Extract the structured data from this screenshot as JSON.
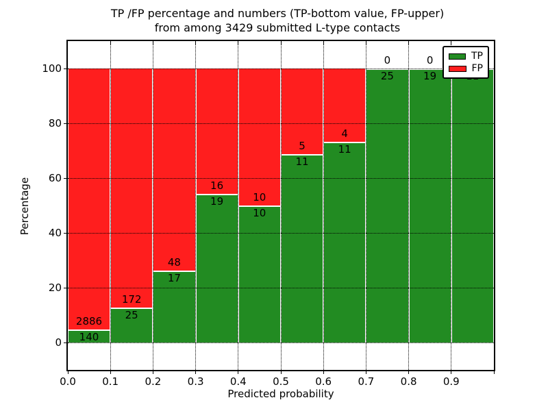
{
  "title": {
    "line1": "TP /FP percentage and numbers (TP-bottom value, FP-upper)",
    "line2": "from among 3429 submitted L-type contacts"
  },
  "axes": {
    "xlabel": "Predicted probability",
    "ylabel": "Percentage",
    "xtick_labels": [
      "0.0",
      "0.1",
      "0.2",
      "0.3",
      "0.4",
      "0.5",
      "0.6",
      "0.7",
      "0.8",
      "0.9"
    ],
    "ytick_labels": [
      "0",
      "20",
      "40",
      "60",
      "80",
      "100"
    ],
    "ytick_values": [
      0,
      20,
      40,
      60,
      80,
      100
    ]
  },
  "legend": {
    "items": [
      {
        "label": "TP",
        "color": "#228B22"
      },
      {
        "label": "FP",
        "color": "#FF1E1E"
      }
    ]
  },
  "colors": {
    "tp": "#228B22",
    "fp": "#FF1E1E",
    "grid": "#000000",
    "background": "#ffffff"
  },
  "chart_data": {
    "type": "bar",
    "stacked": true,
    "normalized_to_percent": true,
    "title": "TP /FP percentage and numbers (TP-bottom value, FP-upper) from among 3429 submitted L-type contacts",
    "xlabel": "Predicted probability",
    "ylabel": "Percentage",
    "categories": [
      "0.0-0.1",
      "0.1-0.2",
      "0.2-0.3",
      "0.3-0.4",
      "0.4-0.5",
      "0.5-0.6",
      "0.6-0.7",
      "0.7-0.8",
      "0.8-0.9",
      "0.9-1.0"
    ],
    "series": [
      {
        "name": "TP",
        "color": "#228B22",
        "values": [
          140,
          25,
          17,
          19,
          10,
          11,
          11,
          25,
          19,
          11
        ]
      },
      {
        "name": "FP",
        "color": "#FF1E1E",
        "values": [
          2886,
          172,
          48,
          16,
          10,
          5,
          4,
          0,
          0,
          0
        ]
      }
    ],
    "tp_percent": [
      4.63,
      12.69,
      26.15,
      54.29,
      50.0,
      68.75,
      73.33,
      100.0,
      100.0,
      100.0
    ],
    "total_contacts": 3429,
    "xlim": [
      0.0,
      1.0
    ],
    "ylim": [
      -10,
      110
    ],
    "grid": true,
    "grid_style": "dotted",
    "legend_position": "upper right"
  }
}
